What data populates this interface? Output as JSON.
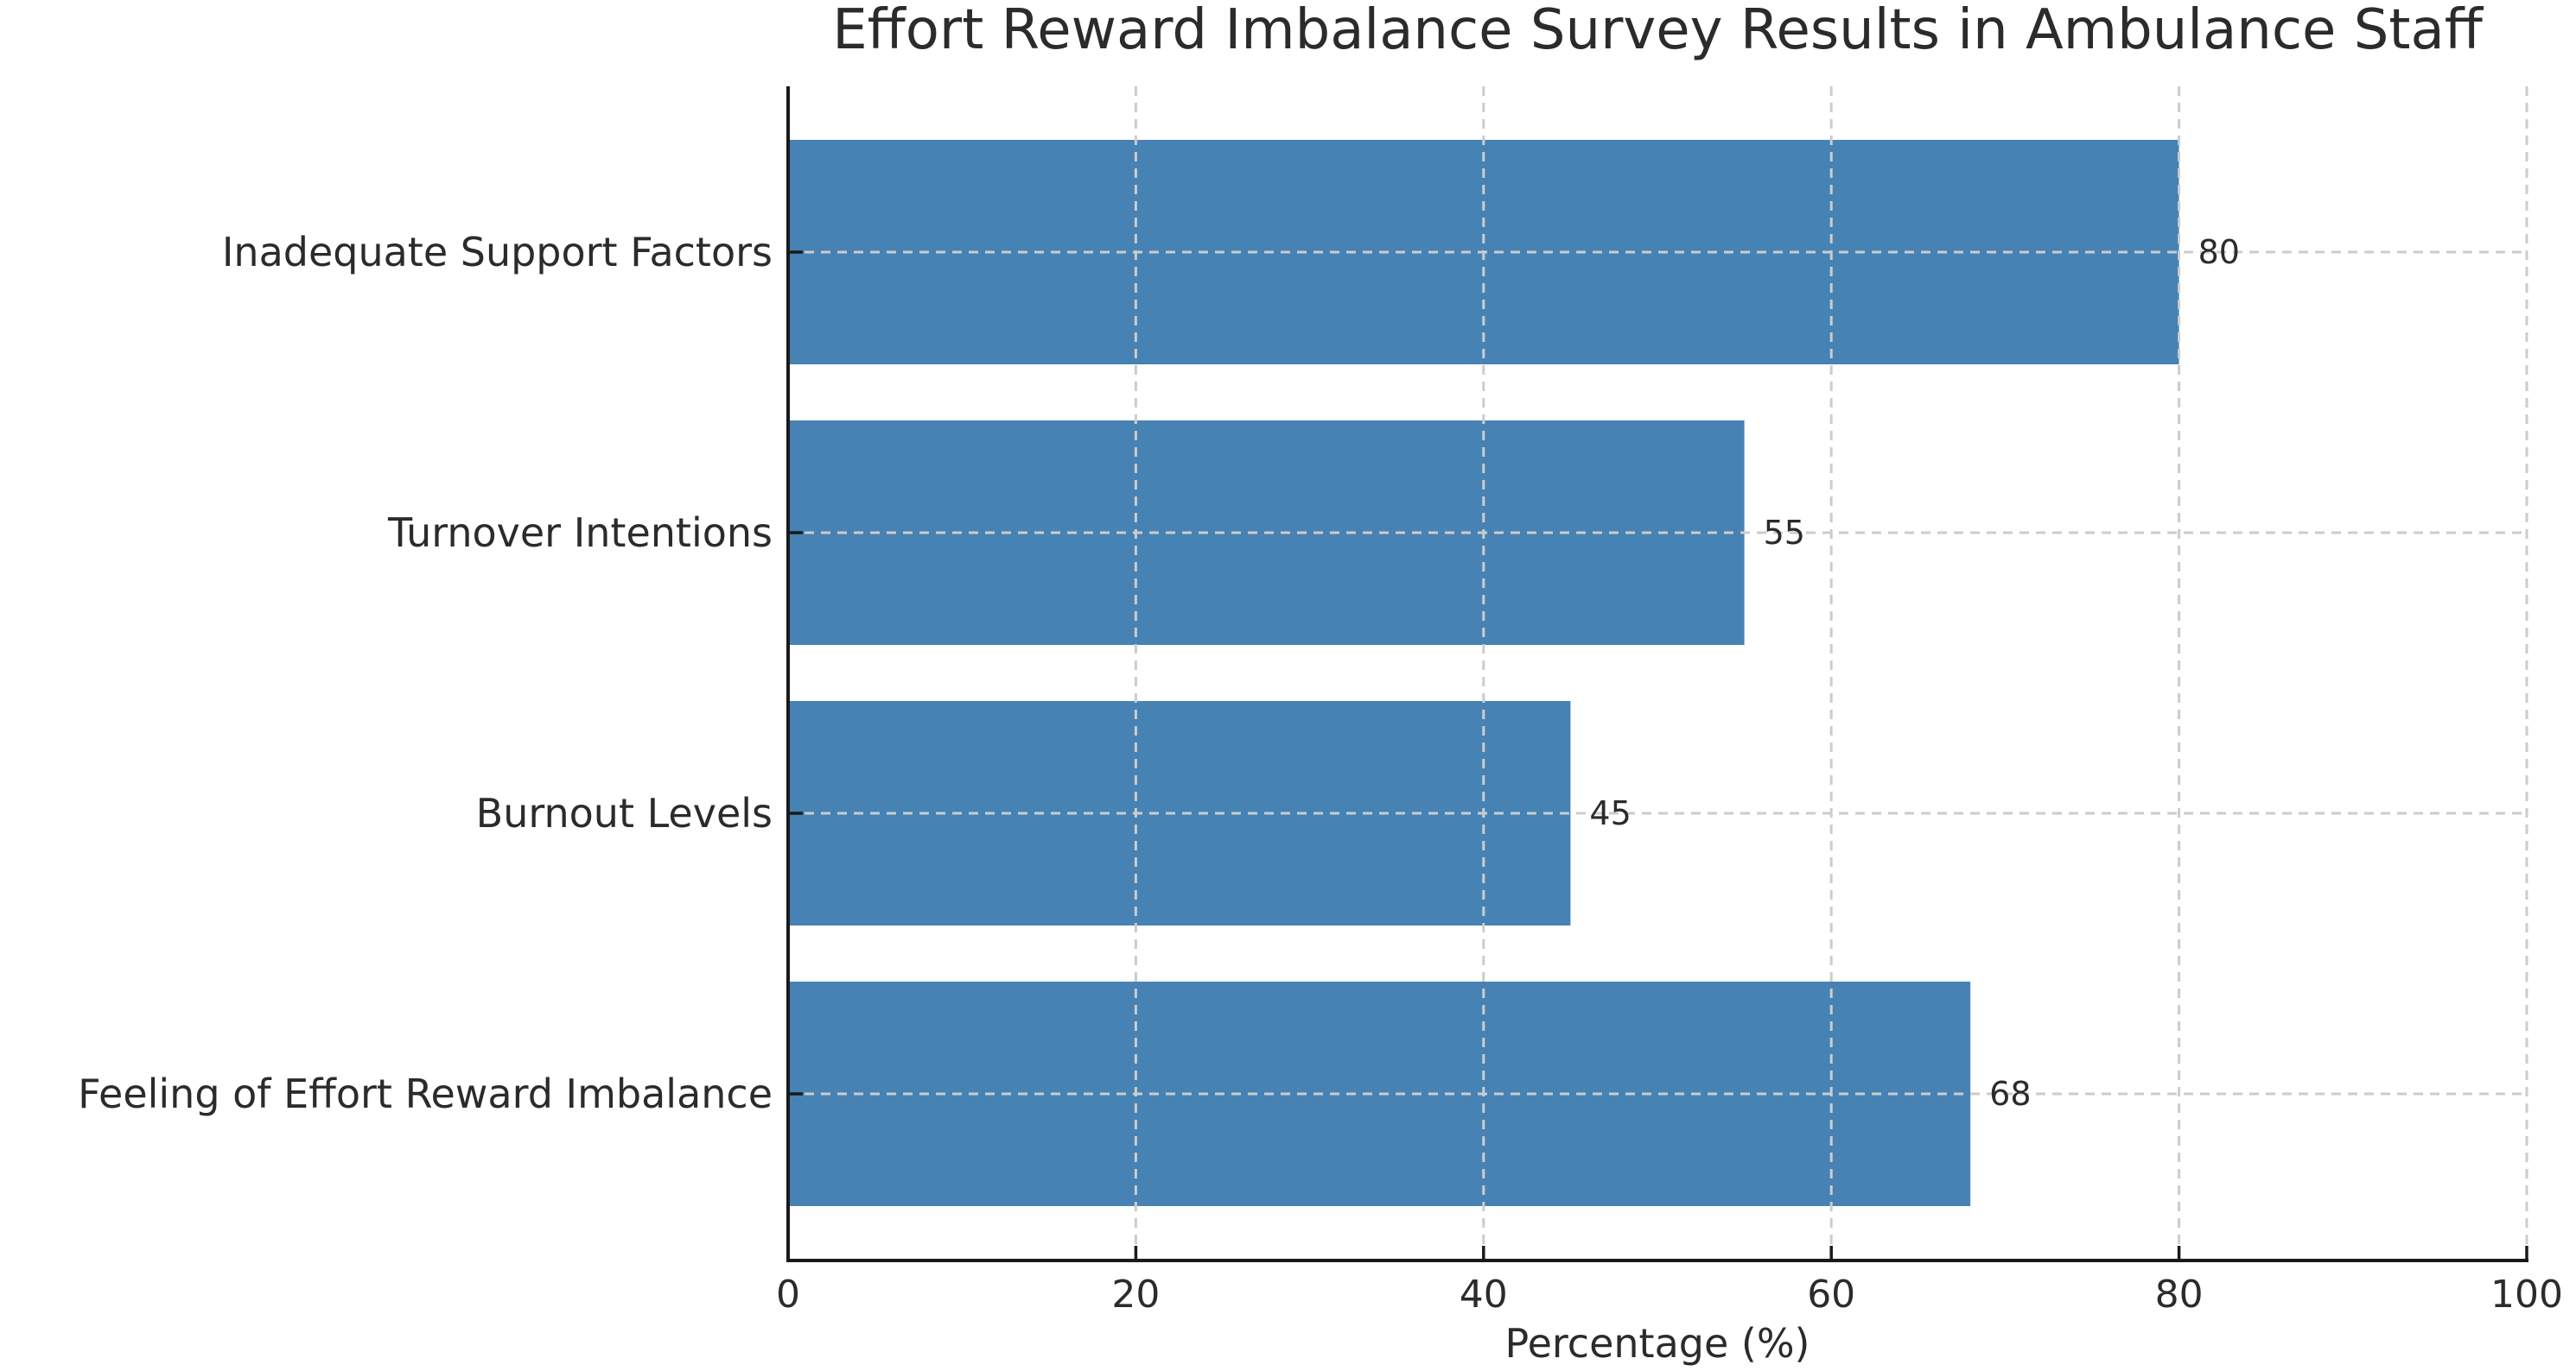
{
  "chart_data": {
    "type": "bar",
    "orientation": "horizontal",
    "title": "Effort Reward Imbalance Survey Results in Ambulance Staff",
    "xlabel": "Percentage (%)",
    "ylabel": "",
    "categories": [
      "Inadequate Support Factors",
      "Turnover Intentions",
      "Burnout Levels",
      "Feeling of Effort Reward Imbalance"
    ],
    "values": [
      80,
      55,
      45,
      68
    ],
    "value_labels": [
      "80",
      "55",
      "45",
      "68"
    ],
    "xlim": [
      0,
      100
    ],
    "xticks": [
      0,
      20,
      40,
      60,
      80,
      100
    ],
    "xtick_labels": [
      "0",
      "20",
      "40",
      "60",
      "80",
      "100"
    ],
    "grid": "dashed gridlines on both axes, drawn over bars",
    "legend_position": "none",
    "bar_color": "#4682b4",
    "grid_color": "#cccccc",
    "axis_color": "#1a1a1a",
    "text_color": "#2b2b2b",
    "background_color": "#ffffff"
  }
}
